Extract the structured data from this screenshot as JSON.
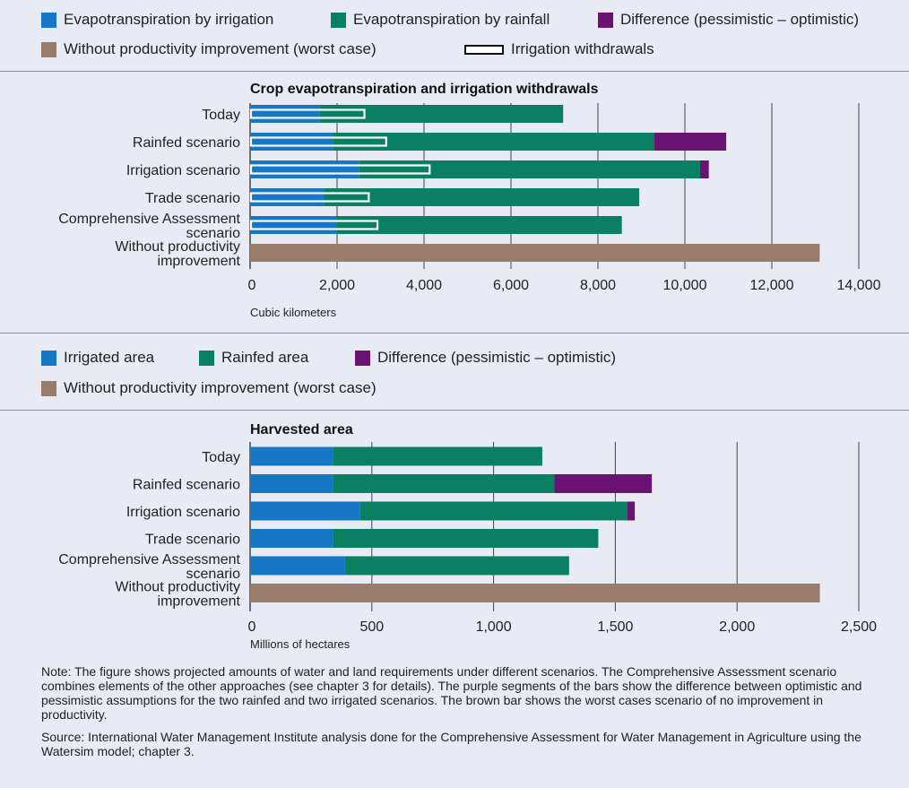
{
  "colors": {
    "irrigation": "#1577c6",
    "rainfall": "#0a8062",
    "difference": "#6b1372",
    "worst": "#9a7c6a",
    "gridline": "#444444",
    "outline": "#111111",
    "background": "#e8ebf3"
  },
  "legend1": {
    "items": [
      {
        "label": "Evapotranspiration by irrigation",
        "color_key": "irrigation"
      },
      {
        "label": "Evapotranspiration by rainfall",
        "color_key": "rainfall"
      },
      {
        "label": "Difference (pessimistic – optimistic)",
        "color_key": "difference"
      },
      {
        "label": "Without productivity improvement (worst case)",
        "color_key": "worst"
      },
      {
        "label": "Irrigation withdrawals",
        "color_key": "outline"
      }
    ]
  },
  "legend2": {
    "items": [
      {
        "label": "Irrigated area",
        "color_key": "irrigation"
      },
      {
        "label": "Rainfed area",
        "color_key": "rainfall"
      },
      {
        "label": "Difference (pessimistic – optimistic)",
        "color_key": "difference"
      },
      {
        "label": "Without productivity improvement (worst case)",
        "color_key": "worst"
      }
    ]
  },
  "chart_data": [
    {
      "type": "bar",
      "orientation": "horizontal",
      "stacked": true,
      "title": "Crop evapotranspiration and irrigation withdrawals",
      "xlabel": "Cubic kilometers",
      "xlim": [
        0,
        14000
      ],
      "xticks": [
        0,
        2000,
        4000,
        6000,
        8000,
        10000,
        12000,
        14000
      ],
      "xtick_labels": [
        "0",
        "2,000",
        "4,000",
        "6,000",
        "8,000",
        "10,000",
        "12,000",
        "14,000"
      ],
      "grid": true,
      "categories": [
        [
          "Today"
        ],
        [
          "Rainfed scenario"
        ],
        [
          "Irrigation scenario"
        ],
        [
          "Trade scenario"
        ],
        [
          "Comprehensive Assessment",
          "scenario"
        ],
        [
          "Without productivity",
          "improvement"
        ]
      ],
      "series": [
        {
          "name": "Evapotranspiration by irrigation",
          "color_key": "irrigation",
          "values": [
            1600,
            1900,
            2500,
            1700,
            2000,
            0
          ]
        },
        {
          "name": "Evapotranspiration by rainfall",
          "color_key": "rainfall",
          "values": [
            5600,
            7400,
            7850,
            7250,
            6550,
            0
          ]
        },
        {
          "name": "Difference (pessimistic – optimistic)",
          "color_key": "difference",
          "values": [
            0,
            1650,
            200,
            0,
            0,
            0
          ]
        },
        {
          "name": "Without productivity improvement (worst case)",
          "color_key": "worst",
          "values": [
            0,
            0,
            0,
            0,
            0,
            13100
          ]
        }
      ],
      "overlay": {
        "name": "Irrigation withdrawals",
        "values": [
          2650,
          3150,
          4150,
          2750,
          2950,
          null
        ]
      }
    },
    {
      "type": "bar",
      "orientation": "horizontal",
      "stacked": true,
      "title": "Harvested area",
      "xlabel": "Millions of hectares",
      "xlim": [
        0,
        2500
      ],
      "xticks": [
        0,
        500,
        1000,
        1500,
        2000,
        2500
      ],
      "xtick_labels": [
        "0",
        "500",
        "1,000",
        "1,500",
        "2,000",
        "2,500"
      ],
      "grid": true,
      "categories": [
        [
          "Today"
        ],
        [
          "Rainfed scenario"
        ],
        [
          "Irrigation scenario"
        ],
        [
          "Trade scenario"
        ],
        [
          "Comprehensive Assessment",
          "scenario"
        ],
        [
          "Without productivity",
          "improvement"
        ]
      ],
      "series": [
        {
          "name": "Irrigated area",
          "color_key": "irrigation",
          "values": [
            340,
            340,
            450,
            340,
            390,
            0
          ]
        },
        {
          "name": "Rainfed area",
          "color_key": "rainfall",
          "values": [
            860,
            910,
            1100,
            1090,
            920,
            0
          ]
        },
        {
          "name": "Difference (pessimistic – optimistic)",
          "color_key": "difference",
          "values": [
            0,
            400,
            30,
            0,
            0,
            0
          ]
        },
        {
          "name": "Without productivity improvement (worst case)",
          "color_key": "worst",
          "values": [
            0,
            0,
            0,
            0,
            0,
            2340
          ]
        }
      ]
    }
  ],
  "note": {
    "text": "Note: The figure shows projected amounts of water and land requirements under different scenarios. The Comprehensive Assessment scenario combines elements of the other approaches (see chapter 3 for details). The purple segments of the bars show the difference between optimistic and pessimistic assumptions for the two rainfed and two irrigated scenarios. The brown bar shows the worst cases scenario of no improvement in productivity.",
    "source": "Source: International Water Management Institute analysis done for the Comprehensive Assessment for Water Management in Agriculture using the Watersim model; chapter 3."
  }
}
